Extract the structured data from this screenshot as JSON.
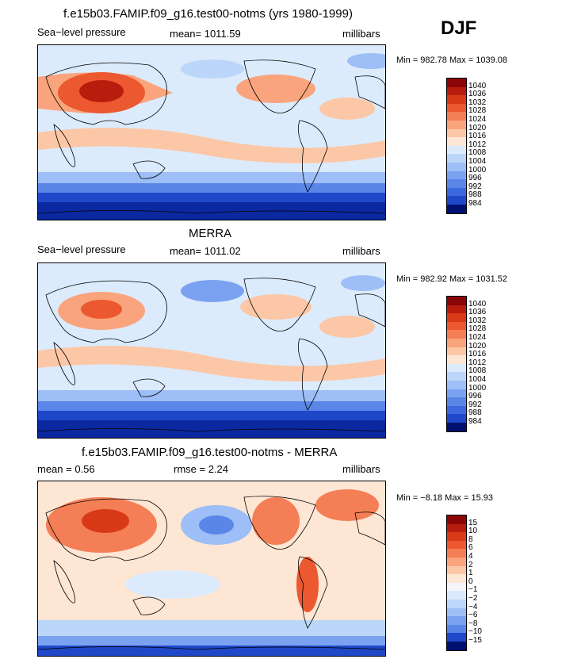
{
  "season": "DJF",
  "colors": {
    "pos": [
      "#fde6d4",
      "#fcc7a6",
      "#f9a47c",
      "#f47e55",
      "#ec5830",
      "#d83a18",
      "#b81c0c",
      "#8a0606"
    ],
    "neg": [
      "#dcebfc",
      "#bcd6fa",
      "#9dbef6",
      "#7aa2f0",
      "#5a86e8",
      "#3b68dc",
      "#1e48c8",
      "#0a28a0",
      "#001070"
    ],
    "zero": "#fff2ea",
    "land_line": "#000000"
  },
  "chart_data": [
    {
      "type": "heatmap",
      "name": "model",
      "title": "f.e15b03.FAMIP.f09_g16.test00-notms (yrs 1980-1999)",
      "left_label": "Sea−level pressure",
      "center_label": "mean=  1011.59",
      "right_label": "millibars",
      "minmax": "Min = 982.78  Max = 1039.08",
      "colorbar_levels": [
        "1040",
        "1036",
        "1032",
        "1028",
        "1024",
        "1020",
        "1016",
        "1012",
        "1008",
        "1004",
        "1000",
        "996",
        "992",
        "988",
        "984"
      ],
      "colorbar_colors": [
        "#8a0606",
        "#b81c0c",
        "#d83a18",
        "#ec5830",
        "#f47e55",
        "#f9a47c",
        "#fcc7a6",
        "#fde6d4",
        "#dcebfc",
        "#bcd6fa",
        "#9dbef6",
        "#7aa2f0",
        "#5a86e8",
        "#3b68dc",
        "#1e48c8",
        "#001070"
      ]
    },
    {
      "type": "heatmap",
      "name": "merra",
      "title": "MERRA",
      "left_label": "Sea−level pressure",
      "center_label": "mean=  1011.02",
      "right_label": "millibars",
      "minmax": "Min = 982.92  Max = 1031.52",
      "colorbar_levels": [
        "1040",
        "1036",
        "1032",
        "1028",
        "1024",
        "1020",
        "1016",
        "1012",
        "1008",
        "1004",
        "1000",
        "996",
        "992",
        "988",
        "984"
      ],
      "colorbar_colors": [
        "#8a0606",
        "#b81c0c",
        "#d83a18",
        "#ec5830",
        "#f47e55",
        "#f9a47c",
        "#fcc7a6",
        "#fde6d4",
        "#dcebfc",
        "#bcd6fa",
        "#9dbef6",
        "#7aa2f0",
        "#5a86e8",
        "#3b68dc",
        "#1e48c8",
        "#001070"
      ]
    },
    {
      "type": "heatmap",
      "name": "difference",
      "title": "f.e15b03.FAMIP.f09_g16.test00-notms - MERRA",
      "left_label": "mean =    0.56",
      "center_label": "rmse =     2.24",
      "right_label": "millibars",
      "minmax": "Min =  −8.18 Max =   15.93",
      "colorbar_levels": [
        "15",
        "10",
        "8",
        "6",
        "4",
        "2",
        "1",
        "0",
        "−1",
        "−2",
        "−4",
        "−6",
        "−8",
        "−10",
        "−15"
      ],
      "colorbar_colors": [
        "#8a0606",
        "#b81c0c",
        "#d83a18",
        "#ec5830",
        "#f47e55",
        "#f9a47c",
        "#fcc7a6",
        "#fde6d4",
        "#f4f4fb",
        "#dcebfc",
        "#bcd6fa",
        "#9dbef6",
        "#7aa2f0",
        "#5a86e8",
        "#1e48c8",
        "#001070"
      ]
    }
  ]
}
